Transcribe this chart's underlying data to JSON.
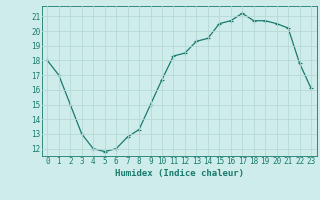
{
  "x": [
    0,
    1,
    2,
    3,
    4,
    5,
    6,
    7,
    8,
    9,
    10,
    11,
    12,
    13,
    14,
    15,
    16,
    17,
    18,
    19,
    20,
    21,
    22,
    23
  ],
  "y": [
    18,
    17,
    15,
    13,
    12,
    11.8,
    12,
    12.8,
    13.3,
    15,
    16.7,
    18.3,
    18.5,
    19.3,
    19.5,
    20.5,
    20.7,
    21.2,
    20.7,
    20.7,
    20.5,
    20.2,
    17.8,
    16.1
  ],
  "line_color": "#1a7a6e",
  "marker": "+",
  "marker_size": 3,
  "marker_linewidth": 0.8,
  "line_width": 0.9,
  "bg_color": "#ceecea",
  "grid_color": "#b8d8d6",
  "tick_color": "#1a7a6e",
  "label_color": "#1a7a6e",
  "xlabel": "Humidex (Indice chaleur)",
  "xlabel_fontsize": 6.5,
  "tick_fontsize": 5.5,
  "yticks": [
    12,
    13,
    14,
    15,
    16,
    17,
    18,
    19,
    20,
    21
  ],
  "xticks": [
    0,
    1,
    2,
    3,
    4,
    5,
    6,
    7,
    8,
    9,
    10,
    11,
    12,
    13,
    14,
    15,
    16,
    17,
    18,
    19,
    20,
    21,
    22,
    23
  ],
  "ylim": [
    11.5,
    21.7
  ],
  "xlim": [
    -0.5,
    23.5
  ]
}
